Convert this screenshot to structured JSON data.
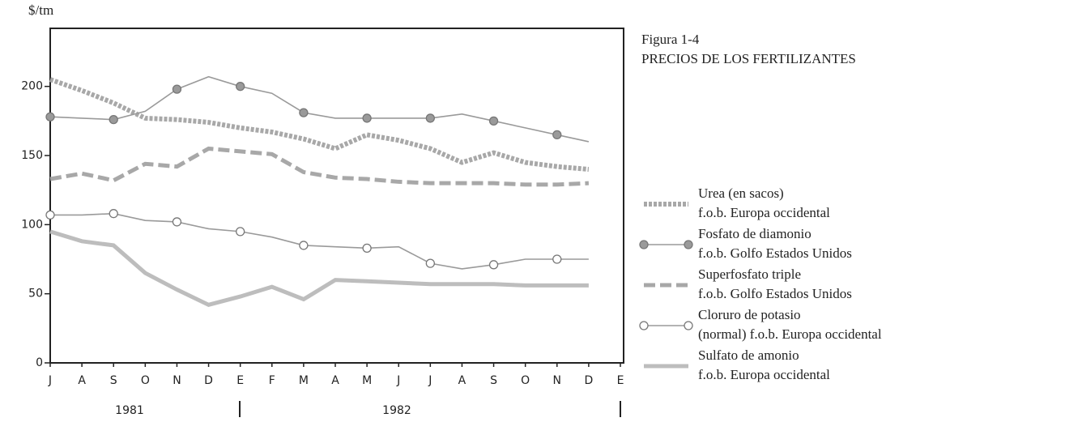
{
  "chart_data": {
    "type": "line",
    "title": "Figura 1-4",
    "subtitle": "PRECIOS DE LOS FERTILIZANTES",
    "y_label": "$/tm",
    "categories": [
      "J",
      "A",
      "S",
      "O",
      "N",
      "D",
      "E",
      "F",
      "M",
      "A",
      "M",
      "J",
      "J",
      "A",
      "S",
      "O",
      "N",
      "D",
      "E"
    ],
    "years": [
      "1981",
      "1982"
    ],
    "ylim": [
      0,
      242
    ],
    "yticks": [
      0,
      50,
      100,
      150,
      200
    ],
    "series": [
      {
        "name": "Urea (en sacos)",
        "subname": "f.o.b. Europa occidental",
        "color": "#a8a8a8",
        "style": "dotted",
        "marker": "none",
        "values": [
          205,
          197,
          188,
          177,
          176,
          174,
          170,
          167,
          162,
          155,
          165,
          161,
          155,
          145,
          152,
          145,
          142,
          140,
          null
        ]
      },
      {
        "name": "Fosfato de diamonio",
        "subname": "f.o.b. Golfo Estados Unidos",
        "color": "#9a9a9a",
        "style": "thin",
        "marker": "filled",
        "values": [
          178,
          177,
          176,
          182,
          198,
          207,
          200,
          195,
          181,
          177,
          177,
          177,
          177,
          180,
          175,
          170,
          165,
          160,
          null
        ]
      },
      {
        "name": "Superfosfato triple",
        "subname": "f.o.b. Golfo Estados Unidos",
        "color": "#a8a8a8",
        "style": "dashed",
        "marker": "none",
        "values": [
          133,
          137,
          132,
          144,
          142,
          155,
          153,
          151,
          138,
          134,
          133,
          131,
          130,
          130,
          130,
          129,
          129,
          130,
          null
        ]
      },
      {
        "name": "Cloruro de potasio",
        "subname": "(normal) f.o.b. Europa occidental",
        "color": "#9a9a9a",
        "style": "thin",
        "marker": "open",
        "values": [
          107,
          107,
          108,
          103,
          102,
          97,
          95,
          91,
          85,
          84,
          83,
          84,
          72,
          68,
          71,
          75,
          75,
          75,
          null
        ]
      },
      {
        "name": "Sulfato de amonio",
        "subname": "f.o.b. Europa occidental",
        "color": "#bdbdbd",
        "style": "solid",
        "marker": "none",
        "values": [
          95,
          88,
          85,
          65,
          53,
          42,
          48,
          55,
          46,
          60,
          59,
          58,
          57,
          57,
          57,
          56,
          56,
          56,
          null
        ]
      }
    ]
  }
}
